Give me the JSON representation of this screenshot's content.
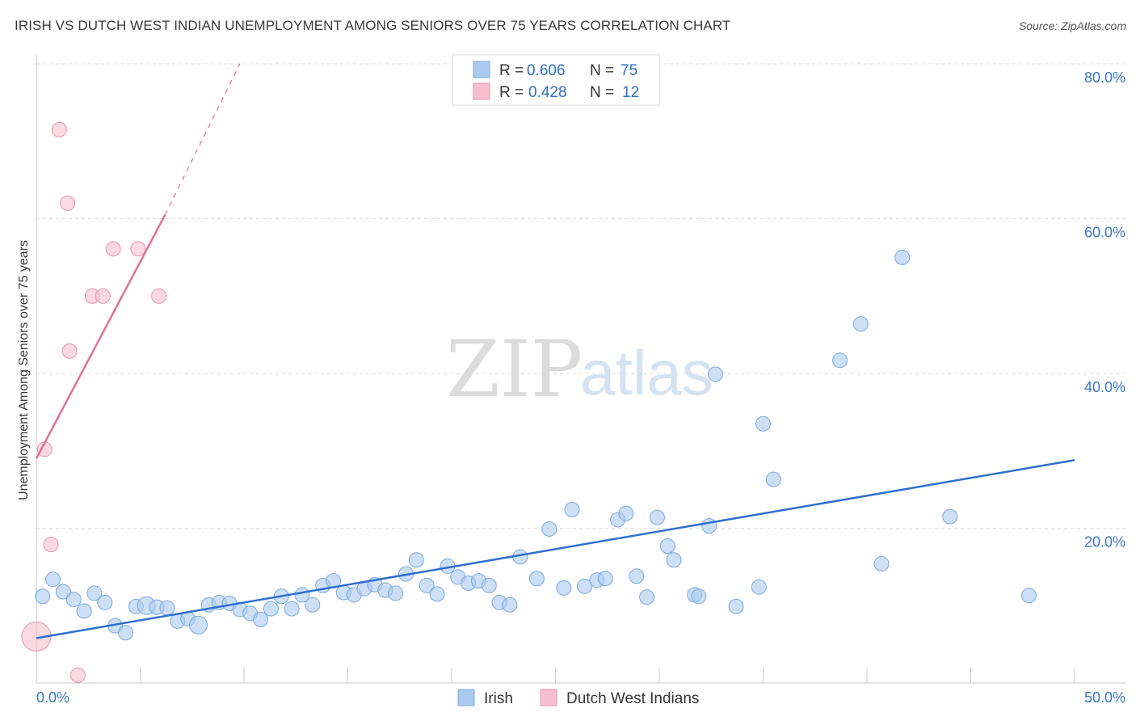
{
  "header": {
    "title": "IRISH VS DUTCH WEST INDIAN UNEMPLOYMENT AMONG SENIORS OVER 75 YEARS CORRELATION CHART",
    "source": "Source: ZipAtlas.com"
  },
  "watermark": {
    "zip": "ZIP",
    "atlas": "atlas"
  },
  "colors": {
    "irish_fill": "#aac9ef",
    "irish_stroke": "#7ca9de",
    "irish_line": "#2e6fcf",
    "dutch_fill": "#f6bfcf",
    "dutch_stroke": "#e893ad",
    "dutch_line": "#e0709a",
    "tick_text": "#3b78c8",
    "grid": "#dddddd"
  },
  "legend": {
    "rows": [
      {
        "r_label": "R =",
        "r_value": "0.606",
        "n_label": "N =",
        "n_value": "75"
      },
      {
        "r_label": "R =",
        "r_value": "0.428",
        "n_label": "N =",
        "n_value": "12"
      }
    ]
  },
  "bottom_legend": {
    "irish": "Irish",
    "dutch": "Dutch West Indians"
  },
  "chart_data": {
    "type": "scatter",
    "title": "IRISH VS DUTCH WEST INDIAN UNEMPLOYMENT AMONG SENIORS OVER 75 YEARS CORRELATION CHART",
    "xlabel": "",
    "ylabel": "Unemployment Among Seniors over 75 years",
    "xlim": [
      0,
      50
    ],
    "ylim": [
      0,
      80
    ],
    "x_tick_labels": [
      "0.0%",
      "50.0%"
    ],
    "y_ticks": [
      20,
      40,
      60,
      80
    ],
    "y_tick_labels": [
      "20.0%",
      "40.0%",
      "60.0%",
      "80.0%"
    ],
    "grid": true,
    "series": [
      {
        "name": "Irish",
        "r": 0.606,
        "n": 75,
        "trend": {
          "x0": 0,
          "y0": 5.8,
          "x1": 50,
          "y1": 28.8
        },
        "points": [
          [
            0.3,
            11.2
          ],
          [
            0.8,
            13.4
          ],
          [
            1.3,
            11.8
          ],
          [
            1.8,
            10.8
          ],
          [
            2.3,
            9.3
          ],
          [
            2.8,
            11.6
          ],
          [
            3.3,
            10.4
          ],
          [
            3.8,
            7.4
          ],
          [
            4.3,
            6.5
          ],
          [
            4.8,
            9.9
          ],
          [
            5.3,
            10.0
          ],
          [
            5.8,
            9.8
          ],
          [
            6.3,
            9.7
          ],
          [
            6.8,
            8.0
          ],
          [
            7.3,
            8.3
          ],
          [
            7.8,
            7.5
          ],
          [
            8.3,
            10.1
          ],
          [
            8.8,
            10.4
          ],
          [
            9.3,
            10.3
          ],
          [
            9.8,
            9.5
          ],
          [
            10.3,
            9.0
          ],
          [
            10.8,
            8.2
          ],
          [
            11.3,
            9.6
          ],
          [
            11.8,
            11.2
          ],
          [
            12.3,
            9.6
          ],
          [
            12.8,
            11.4
          ],
          [
            13.3,
            10.1
          ],
          [
            13.8,
            12.6
          ],
          [
            14.3,
            13.2
          ],
          [
            14.8,
            11.7
          ],
          [
            15.3,
            11.4
          ],
          [
            15.8,
            12.2
          ],
          [
            16.3,
            12.7
          ],
          [
            16.8,
            12.0
          ],
          [
            17.3,
            11.6
          ],
          [
            17.8,
            14.1
          ],
          [
            18.3,
            15.9
          ],
          [
            18.8,
            12.6
          ],
          [
            19.3,
            11.5
          ],
          [
            19.8,
            15.1
          ],
          [
            20.3,
            13.7
          ],
          [
            20.8,
            12.9
          ],
          [
            21.3,
            13.2
          ],
          [
            21.8,
            12.6
          ],
          [
            22.3,
            10.4
          ],
          [
            22.8,
            10.1
          ],
          [
            23.3,
            16.3
          ],
          [
            24.1,
            13.5
          ],
          [
            24.7,
            19.9
          ],
          [
            25.4,
            12.3
          ],
          [
            25.8,
            22.4
          ],
          [
            26.4,
            12.5
          ],
          [
            27.0,
            13.3
          ],
          [
            27.4,
            13.5
          ],
          [
            28.0,
            21.1
          ],
          [
            28.4,
            21.9
          ],
          [
            28.9,
            13.8
          ],
          [
            29.4,
            11.1
          ],
          [
            29.9,
            21.4
          ],
          [
            30.4,
            17.7
          ],
          [
            30.7,
            15.9
          ],
          [
            31.7,
            11.4
          ],
          [
            31.9,
            11.2
          ],
          [
            32.4,
            20.3
          ],
          [
            32.7,
            39.9
          ],
          [
            33.7,
            9.9
          ],
          [
            34.8,
            12.4
          ],
          [
            35.0,
            33.5
          ],
          [
            35.5,
            26.3
          ],
          [
            38.7,
            41.7
          ],
          [
            39.7,
            46.4
          ],
          [
            40.7,
            15.4
          ],
          [
            41.7,
            55.0
          ],
          [
            47.8,
            11.3
          ],
          [
            44.0,
            21.5
          ]
        ]
      },
      {
        "name": "Dutch West Indians",
        "r": 0.428,
        "n": 12,
        "trend": {
          "x0": 0,
          "y0": 29.0,
          "x1": 6.2,
          "y1": 60.5,
          "dash_to_x": 9.8,
          "dash_to_y": 80
        },
        "points": [
          [
            0.0,
            6.0
          ],
          [
            0.4,
            30.2
          ],
          [
            0.7,
            17.9
          ],
          [
            1.1,
            71.5
          ],
          [
            1.5,
            62.0
          ],
          [
            1.6,
            42.9
          ],
          [
            2.7,
            50.0
          ],
          [
            3.2,
            50.0
          ],
          [
            3.7,
            56.1
          ],
          [
            4.9,
            56.1
          ],
          [
            5.9,
            50.0
          ],
          [
            2.0,
            1.0
          ]
        ]
      }
    ]
  }
}
